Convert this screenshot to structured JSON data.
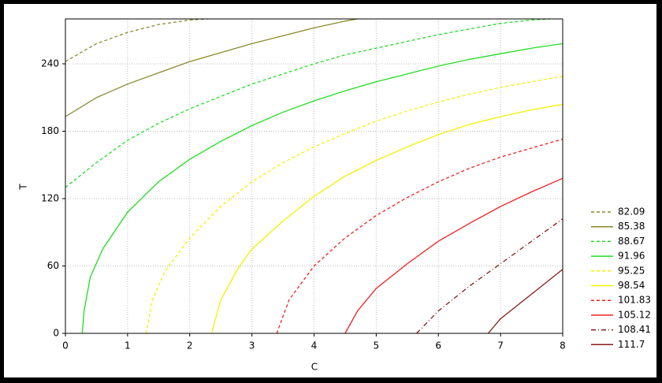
{
  "chart_data": {
    "type": "contour",
    "x_label": "C",
    "y_label": "T",
    "xlim": [
      0,
      8
    ],
    "ylim": [
      0,
      280
    ],
    "xticks": [
      0,
      1,
      2,
      3,
      4,
      5,
      6,
      7,
      8
    ],
    "yticks": [
      0,
      60,
      120,
      180,
      240
    ],
    "grid": true,
    "legend": "right",
    "series": [
      {
        "name": "82.09",
        "color": "#8a8a2e",
        "dash": "dashed",
        "x": [
          0,
          0.5,
          1,
          1.5,
          2,
          2.3
        ],
        "values": [
          242,
          258,
          268,
          275,
          279,
          280
        ]
      },
      {
        "name": "85.38",
        "color": "#8a8a2e",
        "dash": "solid",
        "x": [
          0,
          0.5,
          1,
          1.5,
          2,
          2.5,
          3,
          3.5,
          4,
          4.5,
          4.7
        ],
        "values": [
          193,
          210,
          222,
          232,
          242,
          250,
          258,
          265,
          272,
          278,
          280
        ]
      },
      {
        "name": "88.67",
        "color": "#22dd22",
        "dash": "dashed",
        "x": [
          0,
          0.5,
          1,
          1.5,
          2,
          2.5,
          3,
          3.5,
          4,
          4.5,
          5,
          5.5,
          6,
          6.5,
          7,
          7.5,
          7.8
        ],
        "values": [
          130,
          152,
          172,
          187,
          200,
          211,
          222,
          231,
          240,
          248,
          254,
          260,
          266,
          271,
          276,
          279,
          280
        ]
      },
      {
        "name": "91.96",
        "color": "#22dd22",
        "dash": "solid",
        "x": [
          0.27,
          0.3,
          0.4,
          0.6,
          1,
          1.5,
          2,
          2.5,
          3,
          3.5,
          4,
          4.5,
          5,
          5.5,
          6,
          6.5,
          7,
          7.5,
          8
        ],
        "values": [
          0,
          20,
          50,
          75,
          108,
          135,
          155,
          171,
          185,
          197,
          207,
          216,
          224,
          231,
          238,
          244,
          249,
          254,
          258
        ]
      },
      {
        "name": "95.25",
        "color": "#f2f200",
        "dash": "dashed",
        "x": [
          1.3,
          1.4,
          1.6,
          2,
          2.5,
          3,
          3.5,
          4,
          4.5,
          5,
          5.5,
          6,
          6.5,
          7,
          7.5,
          8
        ],
        "values": [
          0,
          30,
          55,
          85,
          113,
          135,
          152,
          166,
          178,
          189,
          198,
          206,
          213,
          219,
          224,
          229
        ]
      },
      {
        "name": "98.54",
        "color": "#f2f200",
        "dash": "solid",
        "x": [
          2.35,
          2.5,
          2.8,
          3,
          3.5,
          4,
          4.5,
          5,
          5.5,
          6,
          6.5,
          7,
          7.5,
          8
        ],
        "values": [
          0,
          30,
          60,
          75,
          100,
          122,
          140,
          154,
          166,
          177,
          186,
          193,
          199,
          204
        ]
      },
      {
        "name": "101.83",
        "color": "#ee2222",
        "dash": "dashed",
        "x": [
          3.4,
          3.6,
          4,
          4.5,
          5,
          5.5,
          6,
          6.5,
          7,
          7.5,
          8
        ],
        "values": [
          0,
          30,
          60,
          85,
          105,
          121,
          135,
          147,
          157,
          165,
          173
        ]
      },
      {
        "name": "105.12",
        "color": "#ee2222",
        "dash": "solid",
        "x": [
          4.5,
          4.7,
          5,
          5.5,
          6,
          6.5,
          7,
          7.5,
          8
        ],
        "values": [
          0,
          20,
          40,
          62,
          82,
          98,
          113,
          126,
          138
        ]
      },
      {
        "name": "108.41",
        "color": "#8b1a1a",
        "dash": "dashdot",
        "x": [
          5.65,
          6,
          6.5,
          7,
          7.5,
          8
        ],
        "values": [
          0,
          20,
          42,
          62,
          82,
          102
        ]
      },
      {
        "name": "111.7",
        "color": "#8b1a1a",
        "dash": "solid",
        "x": [
          6.8,
          7,
          7.5,
          8
        ],
        "values": [
          0,
          13,
          35,
          57
        ]
      }
    ]
  }
}
